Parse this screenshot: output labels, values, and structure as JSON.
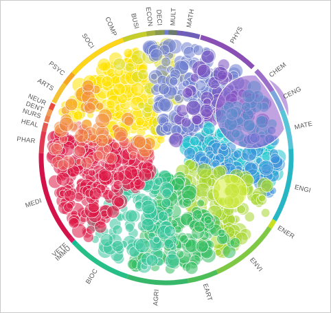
{
  "title": "",
  "ring": {
    "sectors": [
      {
        "label": "COMP",
        "center_deg": -23,
        "span_deg": 56,
        "color": "#6f7fc8"
      },
      {
        "label": "MATH",
        "center_deg": 10,
        "span_deg": 11,
        "color": "#6f5fb8"
      },
      {
        "label": "PHYS",
        "center_deg": 30,
        "span_deg": 28,
        "color": "#8a4fb4"
      },
      {
        "label": "CHEM",
        "center_deg": 52,
        "span_deg": 12,
        "color": "#9b6fc8"
      },
      {
        "label": "CENG",
        "center_deg": 63,
        "span_deg": 10,
        "color": "#7aa6dc"
      },
      {
        "label": "MATE",
        "center_deg": 77,
        "span_deg": 18,
        "color": "#58c4d8"
      },
      {
        "label": "ENGI",
        "center_deg": 103,
        "span_deg": 34,
        "color": "#27b7c4"
      },
      {
        "label": "ENER",
        "center_deg": 122,
        "span_deg": 4,
        "color": "#c9df22"
      },
      {
        "label": "ENVI",
        "center_deg": 140,
        "span_deg": 32,
        "color": "#7fc844"
      },
      {
        "label": "EART",
        "center_deg": 163,
        "span_deg": 14,
        "color": "#4dbd58"
      },
      {
        "label": "AGRI",
        "center_deg": 184,
        "span_deg": 28,
        "color": "#36b76a"
      },
      {
        "label": "BIOC",
        "center_deg": 212,
        "span_deg": 28,
        "color": "#26bf88"
      },
      {
        "label": "IMMU",
        "center_deg": 227,
        "span_deg": 2,
        "color": "#0fbf93"
      },
      {
        "label": "VETE",
        "center_deg": 229,
        "span_deg": 2,
        "color": "#d81b60"
      },
      {
        "label": "MEDI",
        "center_deg": 251,
        "span_deg": 42,
        "color": "#d31249"
      },
      {
        "label": "PHAR",
        "center_deg": 277,
        "span_deg": 10,
        "color": "#e23a52"
      },
      {
        "label": "HEAL",
        "center_deg": 284,
        "span_deg": 4,
        "color": "#e55a50"
      },
      {
        "label": "NURS",
        "center_deg": 288,
        "span_deg": 3,
        "color": "#ec7e50"
      },
      {
        "label": "DENT",
        "center_deg": 291,
        "span_deg": 3,
        "color": "#f09c58"
      },
      {
        "label": "NEUR",
        "center_deg": 294,
        "span_deg": 3,
        "color": "#e94b3c"
      },
      {
        "label": "ARTS",
        "center_deg": 301,
        "span_deg": 10,
        "color": "#f4c232"
      },
      {
        "label": "PSYC",
        "center_deg": 309,
        "span_deg": 6,
        "color": "#f5a51f"
      },
      {
        "label": "SOCI",
        "center_deg": 326,
        "span_deg": 28,
        "color": "#ffd61a"
      },
      {
        "label": "BUSI",
        "center_deg": 347,
        "span_deg": 14,
        "color": "#c6cf2a"
      },
      {
        "label": "ECON",
        "center_deg": 353,
        "span_deg": 4,
        "color": "#a6b23d"
      },
      {
        "label": "DECI",
        "center_deg": 357,
        "span_deg": 4,
        "color": "#8a9a4a"
      },
      {
        "label": "MULT",
        "center_deg": 3,
        "span_deg": 4,
        "color": "#6a7a6c"
      }
    ]
  },
  "clusters": [
    {
      "name": "humanities-social",
      "color": "#ffe100",
      "angle_deg": -40,
      "spread": 0.55,
      "count": 170
    },
    {
      "name": "business",
      "color": "#d8dd2a",
      "angle_deg": -8,
      "spread": 0.4,
      "count": 40
    },
    {
      "name": "computing-math",
      "color": "#6f7fd0",
      "angle_deg": 20,
      "spread": 0.6,
      "count": 190
    },
    {
      "name": "physics",
      "color": "#7a4dbd",
      "angle_deg": 45,
      "spread": 0.55,
      "count": 60
    },
    {
      "name": "chemistry-materials",
      "color": "#20c7d0",
      "angle_deg": 78,
      "spread": 0.55,
      "count": 150
    },
    {
      "name": "engineering",
      "color": "#3a8fd8",
      "angle_deg": 92,
      "spread": 0.35,
      "count": 70
    },
    {
      "name": "energy-environment",
      "color": "#a6d62d",
      "angle_deg": 130,
      "spread": 0.55,
      "count": 120
    },
    {
      "name": "earth-agri",
      "color": "#35bd62",
      "angle_deg": 170,
      "spread": 0.6,
      "count": 160
    },
    {
      "name": "biochem",
      "color": "#37c49a",
      "angle_deg": 205,
      "spread": 0.6,
      "count": 110
    },
    {
      "name": "medicine",
      "color": "#dc1845",
      "angle_deg": 255,
      "spread": 0.65,
      "count": 260
    },
    {
      "name": "pharma-health",
      "color": "#ef6b63",
      "angle_deg": 283,
      "spread": 0.35,
      "count": 40
    },
    {
      "name": "neuro-psych",
      "color": "#f08a3c",
      "angle_deg": 300,
      "spread": 0.35,
      "count": 35
    }
  ],
  "highlights": [
    {
      "name": "physics-highlight",
      "color": "#8e57c8",
      "angle_deg": 62,
      "radius_frac": 0.97,
      "size_frac": 0.3
    },
    {
      "name": "energy-highlight",
      "color": "#d9ee3a",
      "angle_deg": 118,
      "radius_frac": 0.72,
      "size_frac": 0.14
    }
  ]
}
